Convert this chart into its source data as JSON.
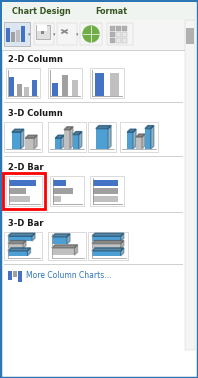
{
  "bg_color": "#ffffff",
  "border_color": "#2E75B6",
  "blue": "#4E9FD4",
  "blue2": "#4472C4",
  "gray": "#A0A0A0",
  "gray2": "#C0C0C0",
  "dark_blue": "#1F4E79",
  "sections": [
    "2-D Column",
    "3-D Column",
    "2-D Bar",
    "3-D Bar"
  ],
  "footer_text": "More Column Charts...",
  "selected_box_color": "#FF0000",
  "title_green": "#375623",
  "toolbar_bg": "#f0f0f0",
  "content_bg": "#ffffff",
  "sep_color": "#d0d0d0",
  "scrollbar_color": "#c0c0c0"
}
